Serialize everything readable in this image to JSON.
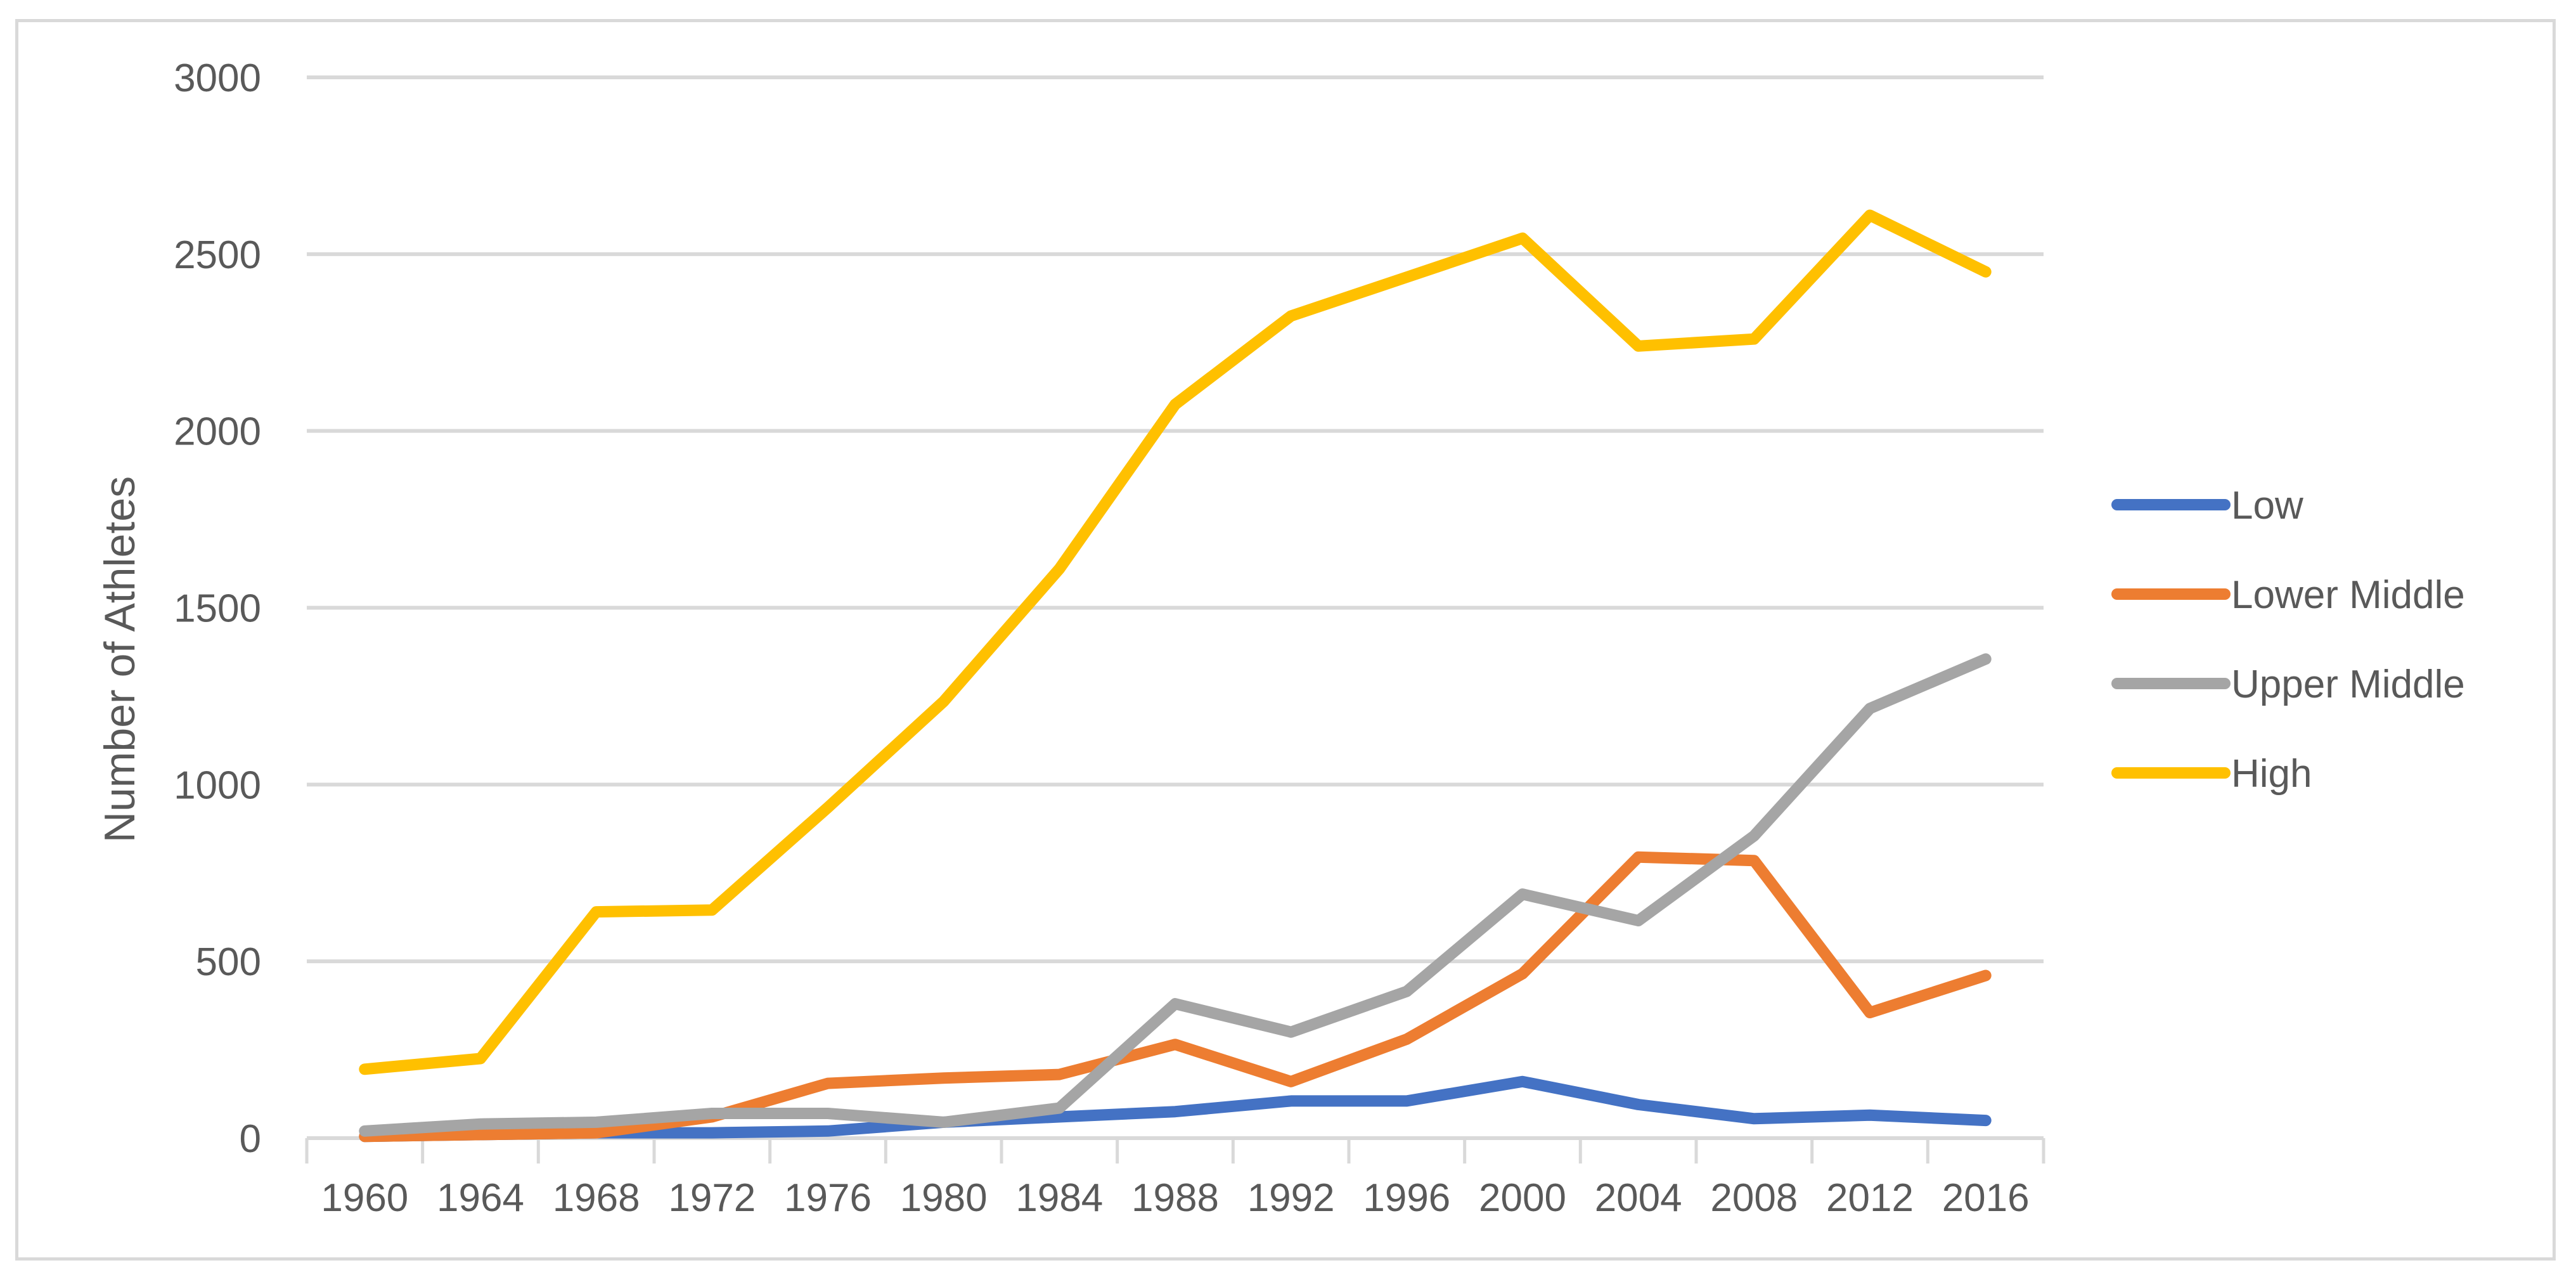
{
  "chart_data": {
    "type": "line",
    "title": "",
    "xlabel": "",
    "ylabel": "Number of Athletes",
    "ylim": [
      0,
      3000
    ],
    "yticks": [
      0,
      500,
      1000,
      1500,
      2000,
      2500,
      3000
    ],
    "grid": true,
    "legend_position": "right",
    "categories": [
      "1960",
      "1964",
      "1968",
      "1972",
      "1976",
      "1980",
      "1984",
      "1988",
      "1992",
      "1996",
      "2000",
      "2004",
      "2008",
      "2012",
      "2016"
    ],
    "series": [
      {
        "name": "Low",
        "color": "#4472c4",
        "values": [
          5,
          10,
          15,
          15,
          20,
          45,
          60,
          75,
          105,
          105,
          160,
          95,
          55,
          65,
          50
        ]
      },
      {
        "name": "Lower Middle",
        "color": "#ed7d31",
        "values": [
          5,
          10,
          15,
          60,
          155,
          170,
          180,
          265,
          160,
          280,
          465,
          795,
          785,
          355,
          460
        ]
      },
      {
        "name": "Upper Middle",
        "color": "#a5a5a5",
        "values": [
          20,
          40,
          45,
          70,
          70,
          45,
          85,
          380,
          300,
          415,
          690,
          615,
          855,
          1215,
          1355
        ]
      },
      {
        "name": "High",
        "color": "#ffc000",
        "values": [
          195,
          225,
          640,
          645,
          935,
          1235,
          1610,
          2075,
          2325,
          2435,
          2545,
          2240,
          2260,
          2610,
          2450
        ]
      }
    ]
  }
}
